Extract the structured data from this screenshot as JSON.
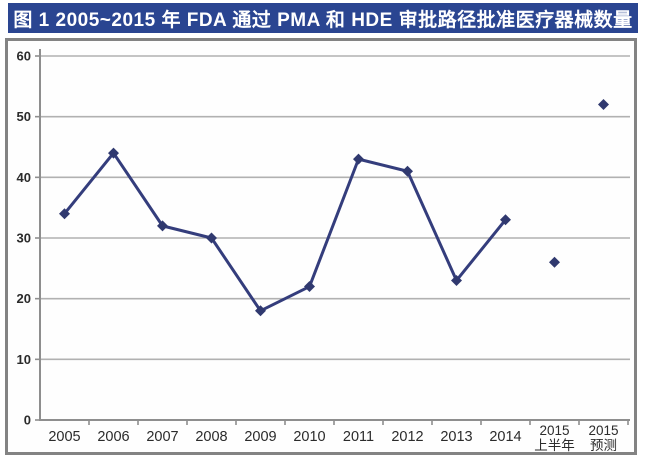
{
  "title": "图 1 2005~2015 年 FDA 通过 PMA 和 HDE 审批路径批准医疗器械数量",
  "colors": {
    "title_bg": "#2a4591",
    "title_text": "#ffffff",
    "line": "#343d7c",
    "marker": "#30396f",
    "gridline": "#b1b1b1",
    "axis": "#8e8e8e",
    "tick_label": "#2b2b2b",
    "chart_border": "#838383",
    "chart_bg": "#fefefe"
  },
  "chart_data": {
    "type": "line",
    "title": "图 1 2005~2015 年 FDA 通过 PMA 和 HDE 审批路径批准医疗器械数量",
    "categories": [
      "2005",
      "2006",
      "2007",
      "2008",
      "2009",
      "2010",
      "2011",
      "2012",
      "2013",
      "2014",
      "2015\n上半年",
      "2015\n预测"
    ],
    "values": [
      34,
      44,
      32,
      30,
      18,
      22,
      43,
      41,
      23,
      33,
      26,
      52
    ],
    "line_end_index": 9,
    "isolated_point_indices": [
      10,
      11
    ],
    "xlabel": "",
    "ylabel": "",
    "ylim": [
      0,
      60
    ],
    "yticks": [
      0,
      10,
      20,
      30,
      40,
      50,
      60
    ],
    "grid": true,
    "legend": false,
    "marker": "diamond"
  }
}
